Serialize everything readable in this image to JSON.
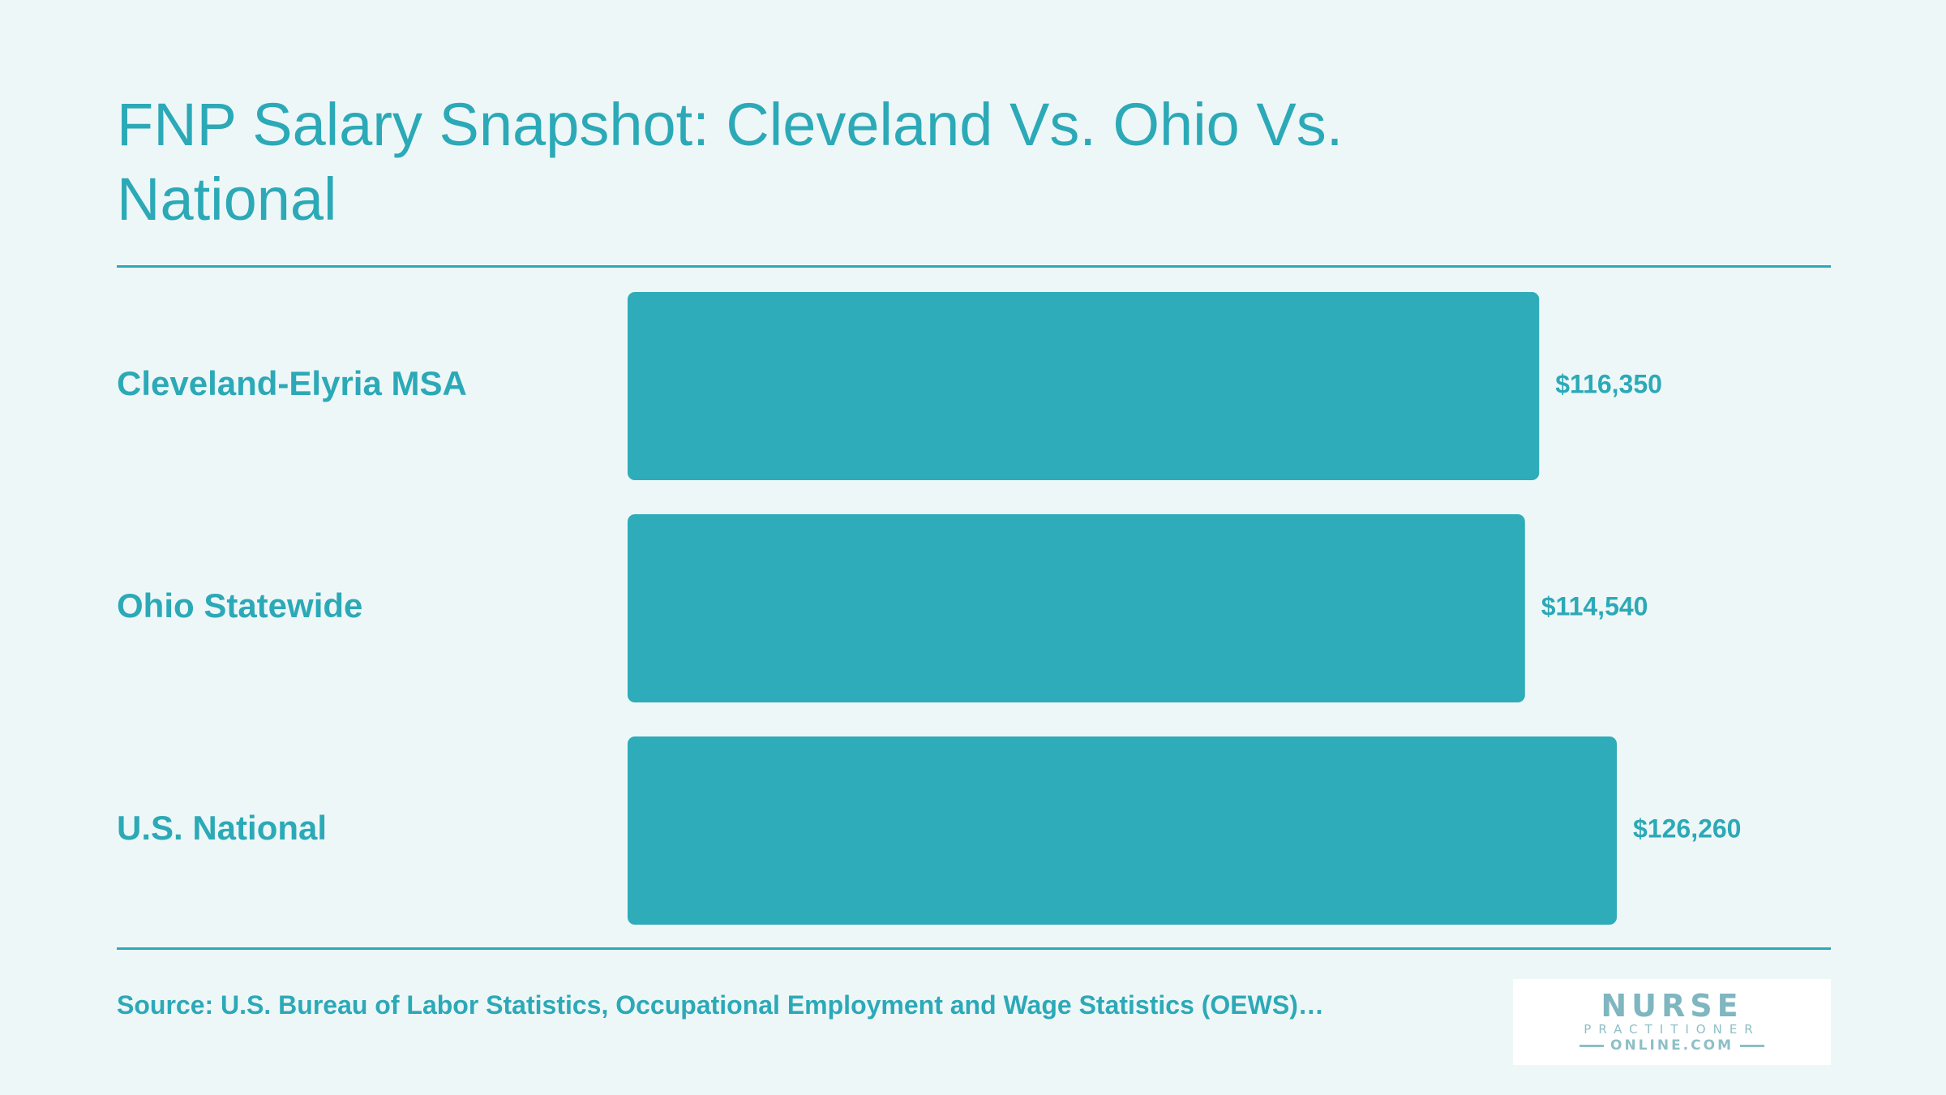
{
  "colors": {
    "background": "#eef7f8",
    "accent": "#2ca9b7",
    "bar": "#2eacb9"
  },
  "title": "FNP Salary Snapshot: Cleveland Vs. Ohio Vs. National",
  "source": "Source: U.S. Bureau of Labor Statistics, Occupational Employment and Wage Statistics (OEWS)…",
  "logo": {
    "main": "NURSE",
    "sub": "PRACTITIONER",
    "site": "ONLINE.COM"
  },
  "chart_data": {
    "type": "bar",
    "orientation": "horizontal",
    "categories": [
      "Cleveland-Elyria MSA",
      "Ohio Statewide",
      "U.S. National"
    ],
    "values": [
      116350,
      114540,
      126260
    ],
    "value_labels": [
      "$116,350",
      "$114,540",
      "$126,260"
    ],
    "title": "FNP Salary Snapshot: Cleveland Vs. Ohio Vs. National",
    "grid": false,
    "legend": false
  }
}
